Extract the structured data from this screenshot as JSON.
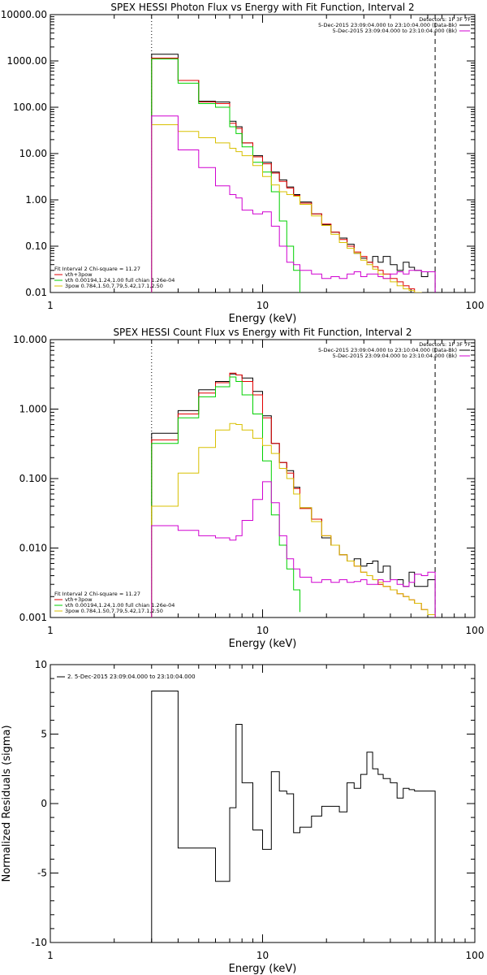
{
  "chart_data": [
    {
      "type": "line",
      "title": "SPEX HESSI Photon Flux vs Energy with Fit Function, Interval 2",
      "xlabel": "Energy (keV)",
      "ylabel": "",
      "xscale": "log",
      "yscale": "log",
      "xlim": [
        1,
        100
      ],
      "ylim": [
        0.01,
        10000
      ],
      "xticks": [
        {
          "v": 1,
          "label": "1"
        },
        {
          "v": 10,
          "label": "10"
        },
        {
          "v": 100,
          "label": "100"
        }
      ],
      "yticks": [
        {
          "v": 0.01,
          "label": "0.01"
        },
        {
          "v": 0.1,
          "label": "0.10"
        },
        {
          "v": 1,
          "label": "1.00"
        },
        {
          "v": 10,
          "label": "10.00"
        },
        {
          "v": 100,
          "label": "100.00"
        },
        {
          "v": 1000,
          "label": "1000.00"
        },
        {
          "v": 10000,
          "label": "10000.00"
        }
      ],
      "vlines": [
        {
          "x": 3.0,
          "style": "dotted"
        },
        {
          "x": 65,
          "style": "dashed"
        }
      ],
      "detectors": "Detectors: 1F 3F 7F",
      "top_legend": [
        {
          "text": "5-Dec-2015 23:09:04.000 to 23:10:04.000 (Data-Bk)",
          "color": "#000000"
        },
        {
          "text": "5-Dec-2015 23:09:04.000 to 23:10:04.000 (Bk)",
          "color": "#d000d0"
        }
      ],
      "fit_legend": {
        "header": "Fit Interval 2   Chi-square = 11.27",
        "items": [
          {
            "text": "vth+3pow",
            "color": "#e00000"
          },
          {
            "text": "vth 0.00194,1.24,1.00  full chian 1.26e-04",
            "color": "#00d000"
          },
          {
            "text": "3pow 0.784,1.50,7.79,5.42,17.1,2.50",
            "color": "#d8c000"
          }
        ]
      },
      "series": [
        {
          "color": "#000000",
          "edges": [
            3,
            4,
            5,
            6,
            7,
            7.5,
            8,
            9,
            10,
            11,
            12,
            13,
            14,
            15,
            17,
            19,
            21,
            23,
            25,
            27,
            29,
            31,
            33,
            35,
            37,
            40,
            43,
            46,
            49,
            52,
            56,
            60,
            65
          ],
          "values": [
            1400,
            380,
            135,
            130,
            50,
            38,
            17,
            9,
            6.5,
            4,
            2.7,
            1.9,
            1.3,
            0.9,
            0.5,
            0.29,
            0.2,
            0.15,
            0.11,
            0.07,
            0.055,
            0.045,
            0.06,
            0.045,
            0.06,
            0.04,
            0.03,
            0.045,
            0.035,
            0.03,
            0.022,
            0.028
          ]
        },
        {
          "color": "#e00000",
          "edges": [
            3,
            4,
            5,
            6,
            7,
            7.5,
            8,
            9,
            10,
            11,
            12,
            13,
            14,
            15,
            17,
            19,
            21,
            23,
            25,
            27,
            29,
            31,
            33,
            35,
            37,
            40,
            43,
            46,
            49,
            52,
            56,
            60,
            65
          ],
          "values": [
            1150,
            380,
            130,
            120,
            45,
            35,
            17,
            8.5,
            6,
            3.8,
            2.5,
            1.8,
            1.25,
            0.85,
            0.5,
            0.3,
            0.2,
            0.14,
            0.1,
            0.075,
            0.06,
            0.045,
            0.036,
            0.03,
            0.025,
            0.02,
            0.017,
            0.014,
            0.012,
            0.01,
            0.009,
            0.008
          ]
        },
        {
          "color": "#00d000",
          "edges": [
            3,
            4,
            5,
            6,
            7,
            7.5,
            8,
            9,
            10,
            11,
            12,
            13,
            14,
            15
          ],
          "values": [
            1100,
            330,
            120,
            100,
            38,
            27,
            14,
            6.5,
            4,
            1.5,
            0.35,
            0.1,
            0.03,
            0.005
          ]
        },
        {
          "color": "#d8c000",
          "edges": [
            3,
            4,
            5,
            6,
            7,
            7.5,
            8,
            9,
            10,
            11,
            12,
            13,
            14,
            15,
            17,
            19,
            21,
            23,
            25,
            27,
            29,
            31,
            33,
            35,
            37,
            40,
            43,
            46,
            49,
            52,
            56,
            60,
            65
          ],
          "values": [
            42,
            30,
            22,
            17,
            13,
            11,
            9,
            5.5,
            3.2,
            2.1,
            1.5,
            1.3,
            1.2,
            0.8,
            0.45,
            0.28,
            0.18,
            0.12,
            0.09,
            0.07,
            0.05,
            0.04,
            0.032,
            0.025,
            0.02,
            0.017,
            0.014,
            0.012,
            0.011,
            0.01,
            0.009,
            0.008
          ]
        },
        {
          "color": "#d000d0",
          "edges": [
            3,
            4,
            5,
            6,
            7,
            7.5,
            8,
            9,
            10,
            11,
            12,
            13,
            14,
            15,
            17,
            19,
            21,
            23,
            25,
            27,
            29,
            31,
            33,
            35,
            37,
            40,
            43,
            46,
            49,
            52,
            56,
            60,
            65
          ],
          "values": [
            65,
            12,
            5,
            2,
            1.3,
            1.1,
            0.6,
            0.5,
            0.55,
            0.27,
            0.1,
            0.045,
            0.04,
            0.03,
            0.025,
            0.02,
            0.022,
            0.02,
            0.025,
            0.028,
            0.022,
            0.025,
            0.025,
            0.022,
            0.02,
            0.025,
            0.028,
            0.025,
            0.03,
            0.03,
            0.028,
            0.028
          ]
        }
      ]
    },
    {
      "type": "line",
      "title": "SPEX HESSI Count Flux vs Energy with Fit Function, Interval 2",
      "xlabel": "Energy (keV)",
      "ylabel": "",
      "xscale": "log",
      "yscale": "log",
      "xlim": [
        1,
        100
      ],
      "ylim": [
        0.001,
        10
      ],
      "xticks": [
        {
          "v": 1,
          "label": "1"
        },
        {
          "v": 10,
          "label": "10"
        },
        {
          "v": 100,
          "label": "100"
        }
      ],
      "yticks": [
        {
          "v": 0.001,
          "label": "0.001"
        },
        {
          "v": 0.01,
          "label": "0.010"
        },
        {
          "v": 0.1,
          "label": "0.100"
        },
        {
          "v": 1,
          "label": "1.000"
        },
        {
          "v": 10,
          "label": "10.000"
        }
      ],
      "vlines": [
        {
          "x": 3.0,
          "style": "dotted"
        },
        {
          "x": 65,
          "style": "dashed"
        }
      ],
      "detectors": "Detectors: 1F 3F 7F",
      "top_legend": [
        {
          "text": "5-Dec-2015 23:09:04.000 to 23:10:04.000 (Data-Bk)",
          "color": "#000000"
        },
        {
          "text": "5-Dec-2015 23:09:04.000 to 23:10:04.000 (Bk)",
          "color": "#d000d0"
        }
      ],
      "fit_legend": {
        "header": "Fit Interval 2   Chi-square = 11.27",
        "items": [
          {
            "text": "vth+3pow",
            "color": "#e00000"
          },
          {
            "text": "vth 0.00194,1.24,1.00  full chian 1.26e-04",
            "color": "#00d000"
          },
          {
            "text": "3pow 0.784,1.50,7.79,5.42,17.1,2.50",
            "color": "#d8c000"
          }
        ]
      },
      "series": [
        {
          "color": "#000000",
          "edges": [
            3,
            4,
            5,
            6,
            7,
            7.5,
            8,
            9,
            10,
            11,
            12,
            13,
            14,
            15,
            17,
            19,
            21,
            23,
            25,
            27,
            29,
            31,
            33,
            35,
            37,
            40,
            43,
            46,
            49,
            52,
            56,
            60,
            65
          ],
          "values": [
            0.45,
            0.95,
            1.9,
            2.5,
            3.2,
            3.1,
            2.8,
            1.8,
            0.8,
            0.32,
            0.17,
            0.13,
            0.075,
            0.038,
            0.026,
            0.014,
            0.011,
            0.008,
            0.0065,
            0.007,
            0.0055,
            0.006,
            0.0065,
            0.0045,
            0.0055,
            0.0035,
            0.0035,
            0.0028,
            0.0045,
            0.0028,
            0.0028,
            0.0035
          ]
        },
        {
          "color": "#e00000",
          "edges": [
            3,
            4,
            5,
            6,
            7,
            7.5,
            8,
            9,
            10,
            11,
            12,
            13,
            14,
            15,
            17,
            19,
            21,
            23,
            25,
            27,
            29,
            31,
            33,
            35,
            37,
            40,
            43,
            46,
            49,
            52,
            56,
            60,
            65
          ],
          "values": [
            0.36,
            0.85,
            1.7,
            2.4,
            3.3,
            3.1,
            2.5,
            1.6,
            0.75,
            0.32,
            0.17,
            0.12,
            0.072,
            0.037,
            0.026,
            0.015,
            0.011,
            0.008,
            0.0065,
            0.0055,
            0.0045,
            0.004,
            0.0035,
            0.003,
            0.0028,
            0.0025,
            0.0022,
            0.002,
            0.0018,
            0.0016,
            0.0013,
            0.0011
          ]
        },
        {
          "color": "#00d000",
          "edges": [
            3,
            4,
            5,
            6,
            7,
            7.5,
            8,
            9,
            10,
            11,
            12,
            13,
            14,
            15
          ],
          "values": [
            0.32,
            0.75,
            1.5,
            2.1,
            2.9,
            2.5,
            1.6,
            0.85,
            0.18,
            0.03,
            0.011,
            0.005,
            0.0025,
            0.0012
          ]
        },
        {
          "color": "#d8c000",
          "edges": [
            3,
            4,
            5,
            6,
            7,
            7.5,
            8,
            9,
            10,
            11,
            12,
            13,
            14,
            15,
            17,
            19,
            21,
            23,
            25,
            27,
            29,
            31,
            33,
            35,
            37,
            40,
            43,
            46,
            49,
            52,
            56,
            60,
            65
          ],
          "values": [
            0.04,
            0.12,
            0.28,
            0.5,
            0.62,
            0.6,
            0.5,
            0.38,
            0.3,
            0.23,
            0.14,
            0.1,
            0.06,
            0.038,
            0.024,
            0.015,
            0.011,
            0.008,
            0.0065,
            0.0055,
            0.0045,
            0.004,
            0.0035,
            0.0032,
            0.0028,
            0.0025,
            0.0022,
            0.002,
            0.0018,
            0.0016,
            0.0013,
            0.0011
          ]
        },
        {
          "color": "#d000d0",
          "edges": [
            3,
            4,
            5,
            6,
            7,
            7.5,
            8,
            9,
            10,
            11,
            12,
            13,
            14,
            15,
            17,
            19,
            21,
            23,
            25,
            27,
            29,
            31,
            33,
            35,
            37,
            40,
            43,
            46,
            49,
            52,
            56,
            60,
            65
          ],
          "values": [
            0.021,
            0.018,
            0.015,
            0.014,
            0.013,
            0.015,
            0.025,
            0.05,
            0.09,
            0.045,
            0.015,
            0.007,
            0.005,
            0.0038,
            0.0032,
            0.0035,
            0.0032,
            0.0035,
            0.0032,
            0.0033,
            0.0035,
            0.003,
            0.003,
            0.0035,
            0.0033,
            0.0035,
            0.003,
            0.0028,
            0.0032,
            0.0042,
            0.004,
            0.0045
          ]
        }
      ]
    },
    {
      "type": "line",
      "title": "",
      "xlabel": "Energy (keV)",
      "ylabel": "Normalized Residuals (sigma)",
      "xscale": "log",
      "yscale": "linear",
      "xlim": [
        1,
        100
      ],
      "ylim": [
        -10,
        10
      ],
      "xticks": [
        {
          "v": 1,
          "label": "1"
        },
        {
          "v": 10,
          "label": "10"
        },
        {
          "v": 100,
          "label": "100"
        }
      ],
      "yticks": [
        {
          "v": -10,
          "label": "-10"
        },
        {
          "v": -5,
          "label": "-5"
        },
        {
          "v": 0,
          "label": "0"
        },
        {
          "v": 5,
          "label": "5"
        },
        {
          "v": 10,
          "label": "10"
        }
      ],
      "legend": [
        {
          "text": "2. 5-Dec-2015 23:09:04.000 to 23:10:04.000",
          "color": "#000000"
        }
      ],
      "series": [
        {
          "color": "#000000",
          "edges": [
            3,
            4,
            5,
            6,
            7,
            7.5,
            8,
            9,
            10,
            11,
            12,
            13,
            14,
            15,
            17,
            19,
            21,
            23,
            25,
            27,
            29,
            31,
            33,
            35,
            37,
            40,
            43,
            46,
            49,
            52,
            56,
            60,
            65
          ],
          "values": [
            8.1,
            -3.2,
            -3.2,
            -5.6,
            -0.3,
            5.7,
            1.5,
            -1.9,
            -3.3,
            2.3,
            0.9,
            0.7,
            -2.1,
            -1.7,
            -0.9,
            -0.2,
            -0.2,
            -0.6,
            1.5,
            1.1,
            2.1,
            3.7,
            2.5,
            2.1,
            1.8,
            1.5,
            0.4,
            1.1,
            1.0,
            0.9,
            0.9,
            0.9
          ]
        }
      ]
    }
  ]
}
